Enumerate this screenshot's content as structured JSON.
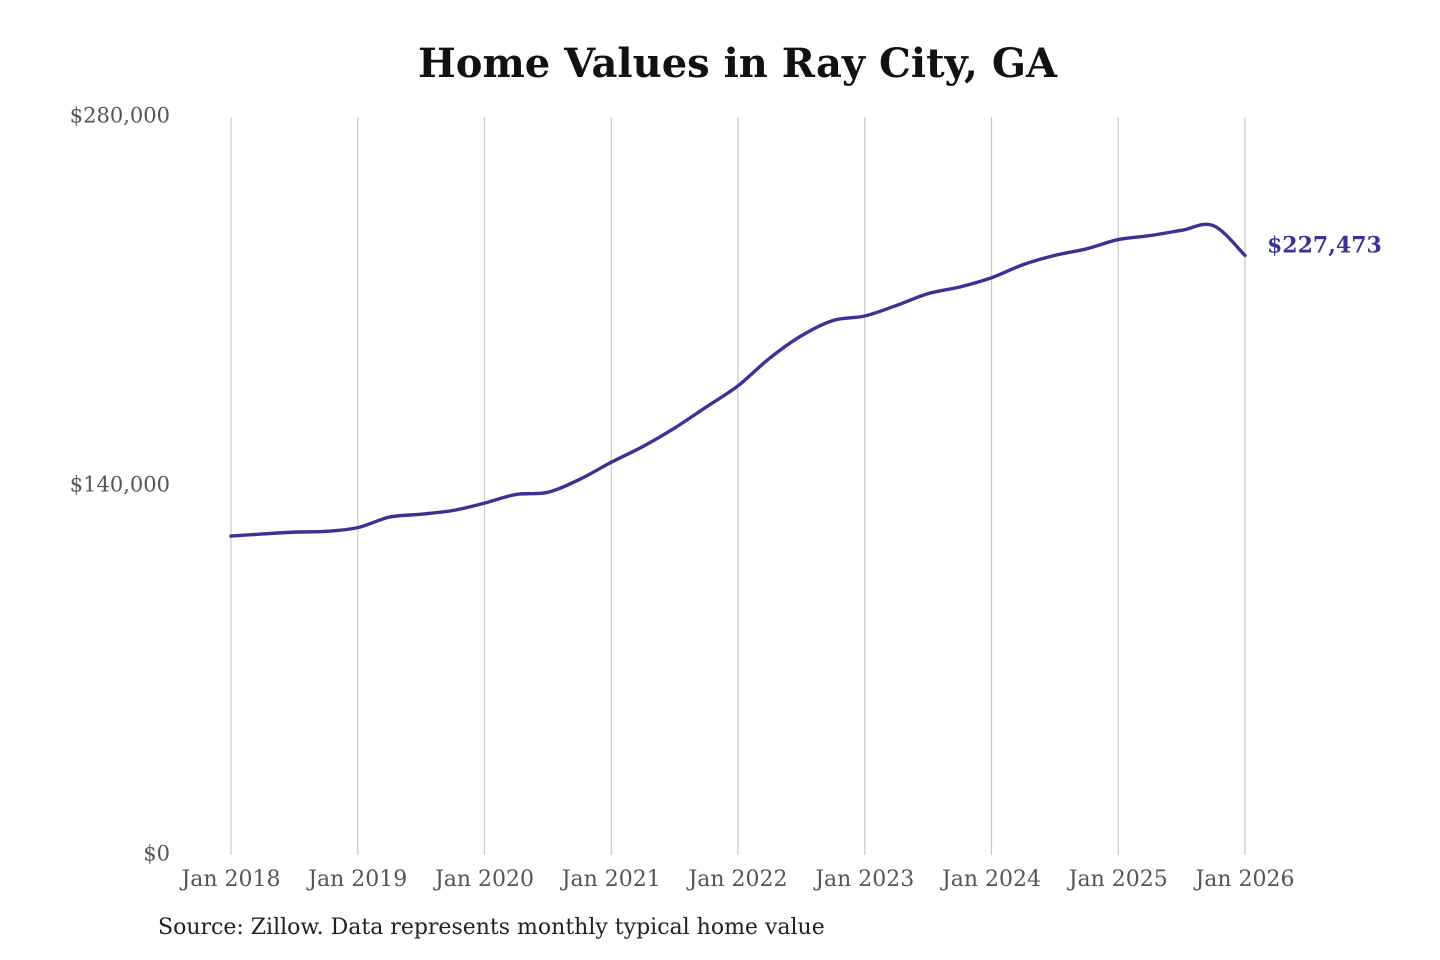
{
  "chart_data": {
    "type": "line",
    "title": "Home Values in Ray City, GA",
    "source_note": "Source: Zillow. Data represents monthly typical home value",
    "xlabel": "",
    "ylabel": "",
    "ylim": [
      0,
      280000
    ],
    "y_ticks": [
      {
        "value": 0,
        "label": "$0"
      },
      {
        "value": 140000,
        "label": "$140,000"
      },
      {
        "value": 280000,
        "label": "$280,000"
      }
    ],
    "x_ticks": [
      {
        "value": "2018-01",
        "label": "Jan 2018"
      },
      {
        "value": "2019-01",
        "label": "Jan 2019"
      },
      {
        "value": "2020-01",
        "label": "Jan 2020"
      },
      {
        "value": "2021-01",
        "label": "Jan 2021"
      },
      {
        "value": "2022-01",
        "label": "Jan 2022"
      },
      {
        "value": "2023-01",
        "label": "Jan 2023"
      },
      {
        "value": "2024-01",
        "label": "Jan 2024"
      },
      {
        "value": "2025-01",
        "label": "Jan 2025"
      },
      {
        "value": "2026-01",
        "label": "Jan 2026"
      }
    ],
    "grid": {
      "vertical": true,
      "horizontal": false
    },
    "line_color": "#3b3296",
    "end_label": "$227,473",
    "series": [
      {
        "points": [
          {
            "x": "2018-01",
            "y": 121000
          },
          {
            "x": "2018-04",
            "y": 121800
          },
          {
            "x": "2018-07",
            "y": 122500
          },
          {
            "x": "2018-10",
            "y": 122800
          },
          {
            "x": "2019-01",
            "y": 124200
          },
          {
            "x": "2019-04",
            "y": 128200
          },
          {
            "x": "2019-07",
            "y": 129300
          },
          {
            "x": "2019-10",
            "y": 130700
          },
          {
            "x": "2020-01",
            "y": 133500
          },
          {
            "x": "2020-04",
            "y": 136800
          },
          {
            "x": "2020-07",
            "y": 137600
          },
          {
            "x": "2020-10",
            "y": 142500
          },
          {
            "x": "2021-01",
            "y": 149000
          },
          {
            "x": "2021-04",
            "y": 155000
          },
          {
            "x": "2021-07",
            "y": 162000
          },
          {
            "x": "2021-10",
            "y": 170000
          },
          {
            "x": "2022-01",
            "y": 178000
          },
          {
            "x": "2022-04",
            "y": 188500
          },
          {
            "x": "2022-07",
            "y": 197000
          },
          {
            "x": "2022-10",
            "y": 202800
          },
          {
            "x": "2023-01",
            "y": 204500
          },
          {
            "x": "2023-04",
            "y": 208500
          },
          {
            "x": "2023-07",
            "y": 213000
          },
          {
            "x": "2023-10",
            "y": 215500
          },
          {
            "x": "2024-01",
            "y": 219000
          },
          {
            "x": "2024-04",
            "y": 224000
          },
          {
            "x": "2024-07",
            "y": 227500
          },
          {
            "x": "2024-10",
            "y": 230000
          },
          {
            "x": "2025-01",
            "y": 233500
          },
          {
            "x": "2025-04",
            "y": 235000
          },
          {
            "x": "2025-07",
            "y": 237000
          },
          {
            "x": "2025-10",
            "y": 238800
          },
          {
            "x": "2026-01",
            "y": 227473
          }
        ]
      }
    ]
  }
}
